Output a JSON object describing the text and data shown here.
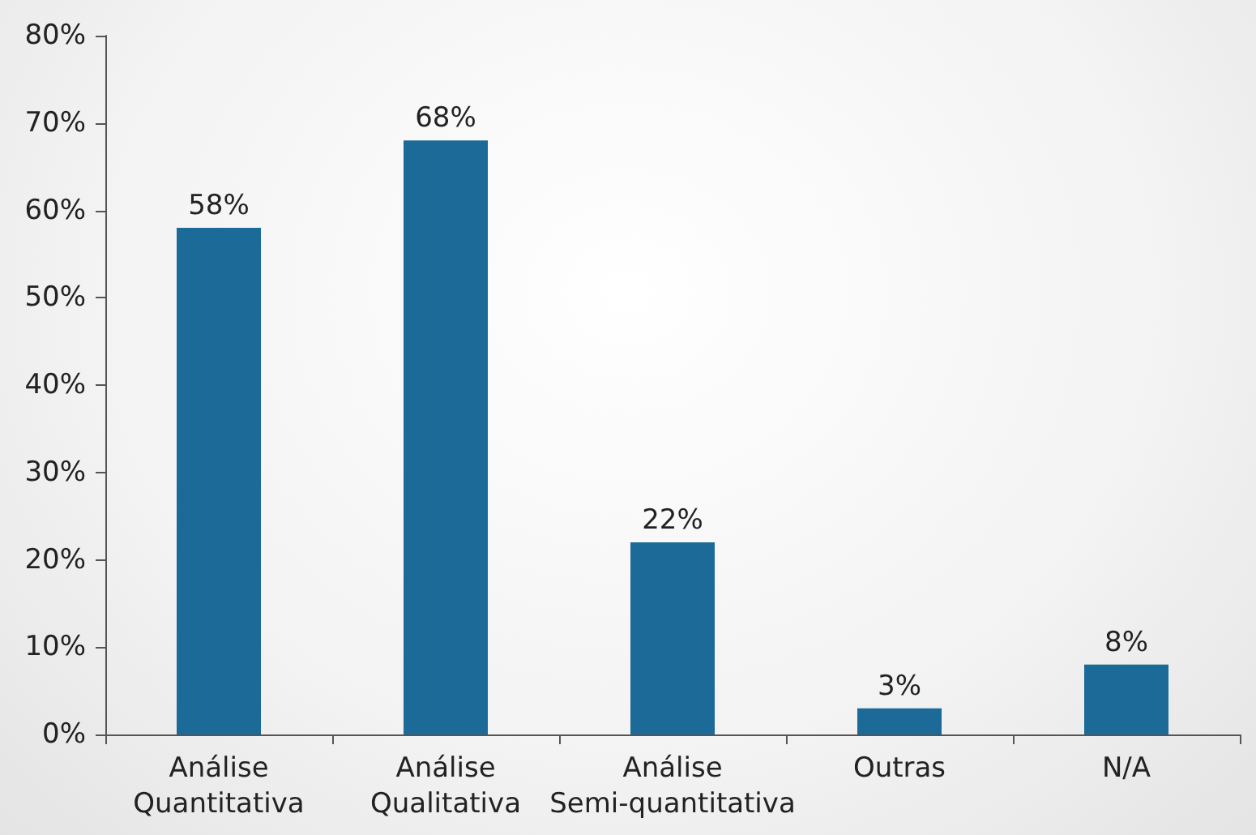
{
  "chart_data": {
    "type": "bar",
    "categories": [
      "Análise\nQuantitativa",
      "Análise\nQualitativa",
      "Análise\nSemi-quantitativa",
      "Outras",
      "N/A"
    ],
    "values": [
      58,
      68,
      22,
      3,
      8
    ],
    "value_labels": [
      "58%",
      "68%",
      "22%",
      "3%",
      "8%"
    ],
    "color": "#1b6a98",
    "ylim": [
      0,
      80
    ],
    "yticks": [
      {
        "value": 0,
        "label": "0%"
      },
      {
        "value": 10,
        "label": "10%"
      },
      {
        "value": 20,
        "label": "20%"
      },
      {
        "value": 30,
        "label": "30%"
      },
      {
        "value": 40,
        "label": "40%"
      },
      {
        "value": 50,
        "label": "50%"
      },
      {
        "value": 60,
        "label": "60%"
      },
      {
        "value": 70,
        "label": "70%"
      },
      {
        "value": 80,
        "label": "80%"
      }
    ],
    "grid": false
  }
}
